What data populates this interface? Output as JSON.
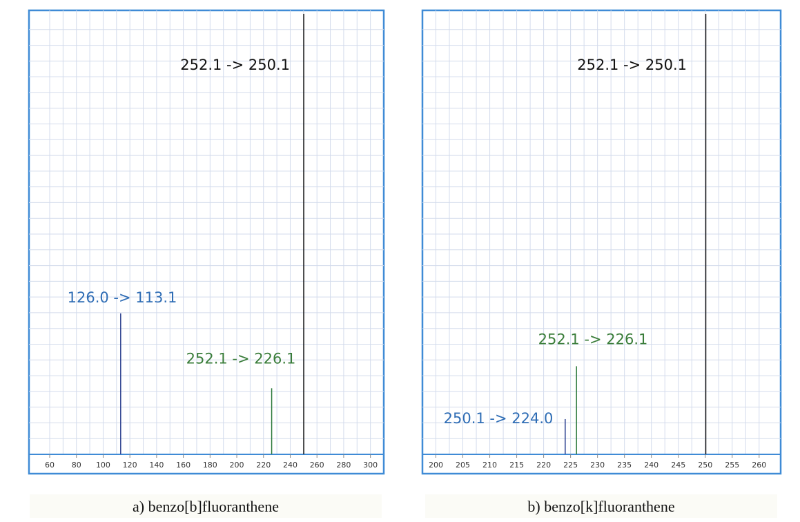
{
  "chart_data": [
    {
      "type": "bar",
      "caption": "a) benzo[b]fluoranthene",
      "x": [
        113.1,
        226.1,
        250.1
      ],
      "values": [
        32,
        15,
        100
      ],
      "labels": [
        "126.0 -> 113.1",
        "252.1 -> 226.1",
        "252.1 -> 250.1"
      ],
      "colors": [
        "#2b3f8f",
        "#2d7a3c",
        "#111111"
      ],
      "label_colors": [
        "#2f6db5",
        "#3a7d3a",
        "#111111"
      ],
      "xlim": [
        44.5,
        310
      ],
      "xticks": [
        60,
        80,
        100,
        120,
        140,
        160,
        180,
        200,
        220,
        240,
        260,
        280,
        300
      ],
      "ylim": [
        0,
        100
      ],
      "grid": true
    },
    {
      "type": "bar",
      "caption": "b) benzo[k]fluoranthene",
      "x": [
        224.0,
        226.1,
        250.1
      ],
      "values": [
        8,
        20,
        100
      ],
      "labels": [
        "250.1 -> 224.0",
        "252.1 -> 226.1",
        "252.1 -> 250.1"
      ],
      "colors": [
        "#2b3f8f",
        "#2d7a3c",
        "#111111"
      ],
      "label_colors": [
        "#2f6db5",
        "#3a7d3a",
        "#111111"
      ],
      "xlim": [
        197.5,
        264
      ],
      "xticks": [
        200,
        205,
        210,
        215,
        220,
        225,
        230,
        235,
        240,
        245,
        250,
        255,
        260
      ],
      "ylim": [
        0,
        100
      ],
      "grid": true
    }
  ]
}
